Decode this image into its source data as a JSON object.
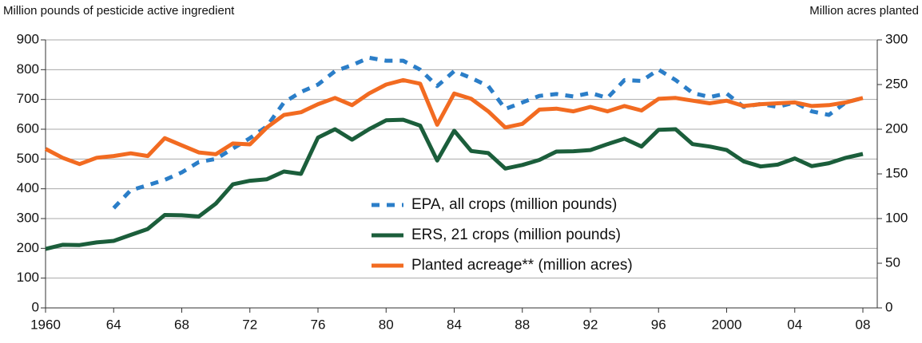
{
  "chart_data": {
    "type": "line",
    "y_label": "Million pounds of pesticide active ingredient",
    "y2_label": "Million acres planted",
    "x": [
      1960,
      1961,
      1962,
      1963,
      1964,
      1965,
      1966,
      1967,
      1968,
      1969,
      1970,
      1971,
      1972,
      1973,
      1974,
      1975,
      1976,
      1977,
      1978,
      1979,
      1980,
      1981,
      1982,
      1983,
      1984,
      1985,
      1986,
      1987,
      1988,
      1989,
      1990,
      1991,
      1992,
      1993,
      1994,
      1995,
      1996,
      1997,
      1998,
      1999,
      2000,
      2001,
      2002,
      2003,
      2004,
      2005,
      2006,
      2007,
      2008
    ],
    "xlim": [
      1960,
      2008
    ],
    "xticks": [
      1960,
      {
        "value": 1964,
        "label": "64"
      },
      {
        "value": 1968,
        "label": "68"
      },
      {
        "value": 1972,
        "label": "72"
      },
      {
        "value": 1976,
        "label": "76"
      },
      {
        "value": 1980,
        "label": "80"
      },
      {
        "value": 1984,
        "label": "84"
      },
      {
        "value": 1988,
        "label": "88"
      },
      {
        "value": 1992,
        "label": "92"
      },
      {
        "value": 1996,
        "label": "96"
      },
      2000,
      {
        "value": 2004,
        "label": "04"
      },
      {
        "value": 2008,
        "label": "08"
      }
    ],
    "ylim": [
      0,
      900
    ],
    "yticks": [
      0,
      100,
      200,
      300,
      400,
      500,
      600,
      700,
      800,
      900
    ],
    "y2lim": [
      0,
      300
    ],
    "y2ticks": [
      0,
      50,
      100,
      150,
      200,
      250,
      300
    ],
    "grid": true,
    "series": [
      {
        "name": "EPA, all crops (million pounds)",
        "color": "#2b7ec8",
        "dashed": true,
        "values": [
          null,
          null,
          null,
          null,
          335,
          395,
          412,
          430,
          455,
          490,
          500,
          535,
          570,
          610,
          690,
          725,
          750,
          795,
          815,
          840,
          830,
          830,
          800,
          745,
          795,
          772,
          745,
          668,
          690,
          712,
          718,
          710,
          722,
          705,
          765,
          762,
          800,
          765,
          722,
          708,
          720,
          675,
          685,
          675,
          690,
          660,
          648,
          690,
          705
        ]
      },
      {
        "name": "ERS, 21 crops (million pounds)",
        "color": "#1b5e3b",
        "values": [
          198,
          212,
          211,
          220,
          225,
          245,
          265,
          312,
          311,
          307,
          350,
          415,
          427,
          432,
          458,
          450,
          572,
          600,
          565,
          600,
          630,
          632,
          612,
          495,
          595,
          527,
          520,
          468,
          480,
          497,
          525,
          526,
          530,
          550,
          568,
          542,
          598,
          600,
          550,
          542,
          530,
          492,
          475,
          481,
          502,
          476,
          486,
          504,
          517
        ]
      },
      {
        "name": "Planted acreage** (million acres)",
        "color": "#f26b21",
        "axis": "y2",
        "values": [
          178,
          168,
          161,
          168,
          170,
          173,
          170,
          190,
          182,
          174,
          172,
          184,
          183,
          202,
          216,
          219,
          228,
          235,
          227,
          240,
          250,
          255,
          251,
          205,
          240,
          234,
          220,
          202,
          206,
          222,
          223,
          220,
          225,
          220,
          226,
          221,
          234,
          235,
          232,
          229,
          232,
          226,
          228,
          229,
          230,
          226,
          227,
          230,
          235
        ]
      }
    ]
  }
}
